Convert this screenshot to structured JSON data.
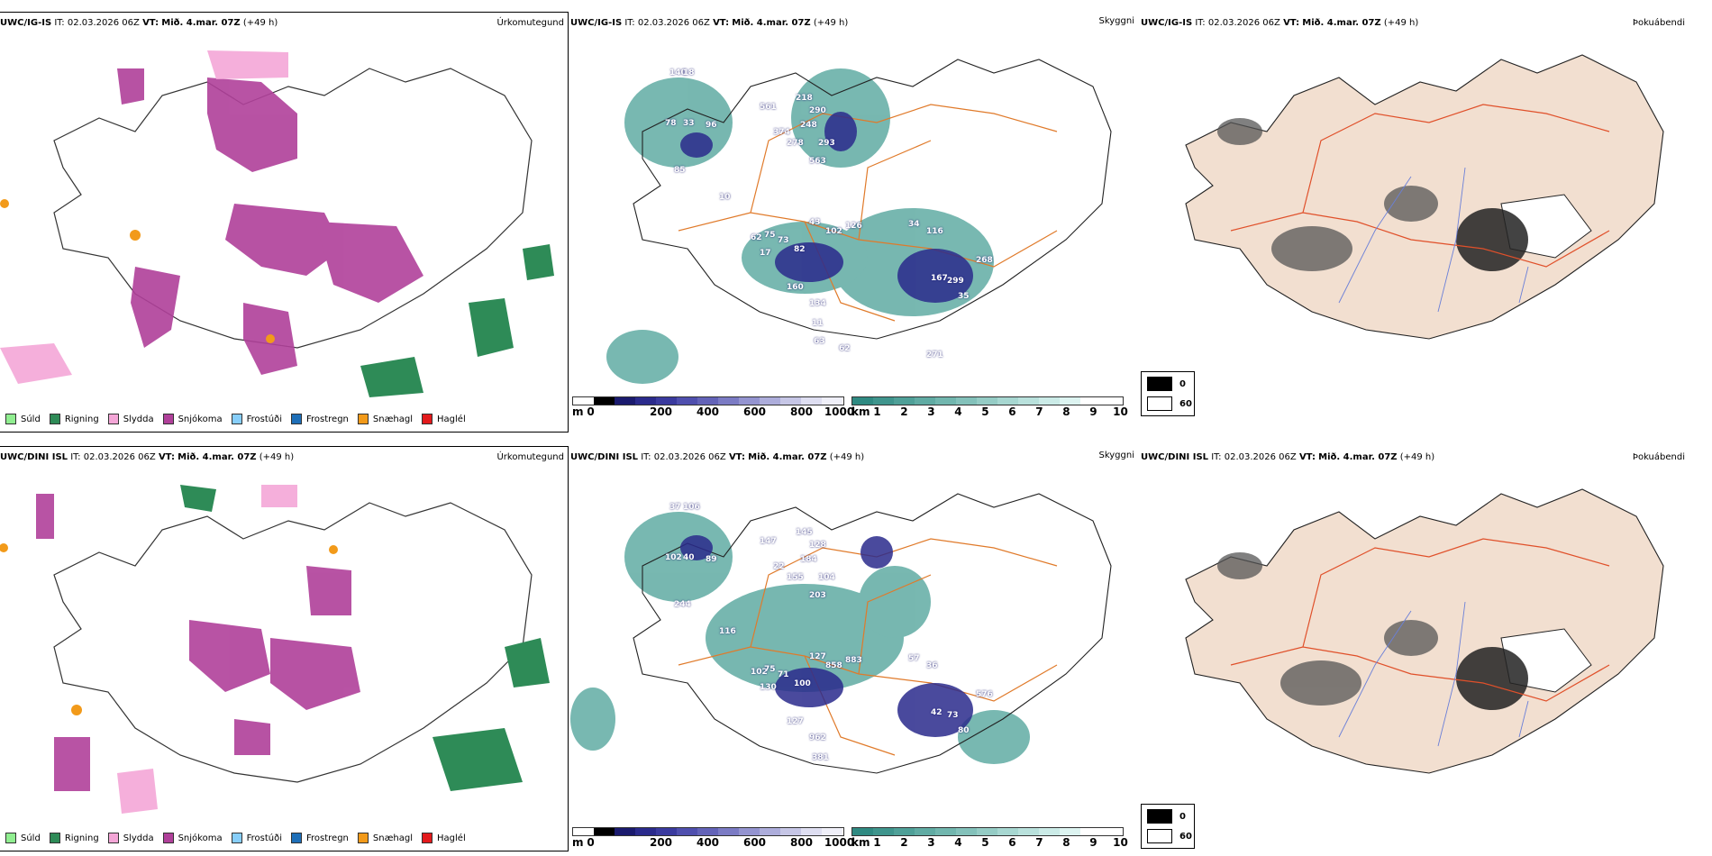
{
  "rows": [
    {
      "model": "UWC/IG-IS",
      "it_prefix": "IT:",
      "it_value": "02.03.2026 06Z",
      "vt_prefix": "VT:",
      "vt_value": "Mið. 4.mar. 07Z",
      "lead": "(+49 h)"
    },
    {
      "model": "UWC/DINI ISL",
      "it_prefix": "IT:",
      "it_value": "02.03.2026 06Z",
      "vt_prefix": "VT:",
      "vt_value": "Mið. 4.mar. 07Z",
      "lead": "(+49 h)"
    }
  ],
  "panel_types": {
    "precip": "Úrkomutegund",
    "ceiling": "Skyggni",
    "fog": "Þokuábendi"
  },
  "precip_legend": [
    {
      "label": "Súld",
      "color": "#90ee90"
    },
    {
      "label": "Rigning",
      "color": "#2e8b57"
    },
    {
      "label": "Slydda",
      "color": "#f4a6d7"
    },
    {
      "label": "Snjókoma",
      "color": "#b0409a"
    },
    {
      "label": "Frostúði",
      "color": "#87cefa"
    },
    {
      "label": "Frostregn",
      "color": "#1e6fb8"
    },
    {
      "label": "Snæhagl",
      "color": "#f29a1a"
    },
    {
      "label": "Haglél",
      "color": "#e31a1c"
    }
  ],
  "ceiling_bar": {
    "unit": "m",
    "ticks": [
      "0",
      "200",
      "400",
      "600",
      "800",
      "1000"
    ],
    "colors": [
      "#ffffff",
      "#000000",
      "#1a1a6e",
      "#2a2a8c",
      "#3a3a9e",
      "#4f4fae",
      "#6363b8",
      "#7b7bc4",
      "#9494d0",
      "#adaddb",
      "#c6c6e6",
      "#dedef1",
      "#efeff8"
    ]
  },
  "visibility_bar": {
    "unit": "km",
    "ticks": [
      "1",
      "2",
      "3",
      "4",
      "5",
      "6",
      "7",
      "8",
      "9",
      "10"
    ],
    "colors": [
      "#2f8a82",
      "#3f958d",
      "#4fa098",
      "#60aba3",
      "#71b6ae",
      "#83c1ba",
      "#95ccc5",
      "#a7d7d1",
      "#b9e1dc",
      "#cbebe7",
      "#ddf4f1",
      "#ffffff",
      "#ffffff"
    ]
  },
  "fog_legend": [
    {
      "label": "0",
      "color": "#000000"
    },
    {
      "label": "60",
      "color": "#ffffff"
    }
  ],
  "ceiling_labels_top": [
    "140",
    "18",
    "78",
    "33",
    "96",
    "561",
    "218",
    "290",
    "374",
    "248",
    "278",
    "293",
    "563",
    "85",
    "10",
    "62",
    "75",
    "73",
    "82",
    "43",
    "102",
    "126",
    "160",
    "17",
    "116",
    "34",
    "268",
    "167",
    "299",
    "35",
    "134",
    "11",
    "62",
    "63",
    "271"
  ],
  "ceiling_labels_bottom": [
    "37",
    "106",
    "102",
    "40",
    "89",
    "147",
    "145",
    "128",
    "22",
    "184",
    "155",
    "104",
    "203",
    "244",
    "116",
    "102",
    "75",
    "71",
    "100",
    "127",
    "858",
    "883",
    "127",
    "130",
    "36",
    "57",
    "576",
    "42",
    "73",
    "80",
    "962",
    "381"
  ]
}
